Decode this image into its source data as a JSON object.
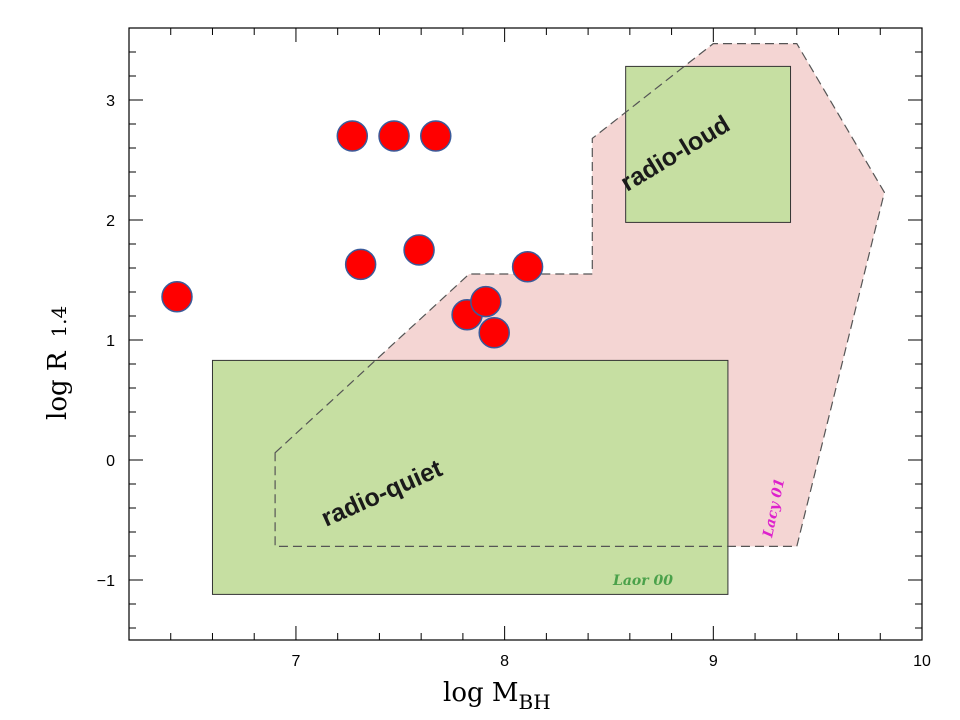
{
  "chart_data": {
    "type": "scatter",
    "title": "",
    "xlabel_main": "log  M",
    "xlabel_sub": "BH",
    "ylabel_main": "log  R",
    "ylabel_sub": "1.4",
    "xlim": [
      6.2,
      10.0
    ],
    "ylim": [
      -1.5,
      3.6
    ],
    "x_ticks": [
      7,
      8,
      9,
      10
    ],
    "y_ticks": [
      -1,
      0,
      1,
      2,
      3
    ],
    "x_tick_labels": [
      "7",
      "8",
      "9",
      "10"
    ],
    "y_tick_labels": [
      "−1",
      "0",
      "1",
      "2",
      "3"
    ],
    "grid": false,
    "points": {
      "color": "#ff0000",
      "edge_color": "#3a5a9a",
      "x": [
        6.43,
        7.27,
        7.47,
        7.67,
        7.31,
        7.59,
        8.11,
        7.82,
        7.91,
        7.95
      ],
      "y": [
        1.36,
        2.7,
        2.7,
        2.7,
        1.63,
        1.75,
        1.61,
        1.21,
        1.32,
        1.06
      ]
    },
    "regions": [
      {
        "name": "radio-quiet",
        "kind": "box",
        "fill": "#c6dfa2",
        "x": [
          6.6,
          9.07
        ],
        "y": [
          -1.12,
          0.83
        ]
      },
      {
        "name": "radio-loud",
        "kind": "box",
        "fill": "#c6dfa2",
        "x": [
          8.58,
          9.37
        ],
        "y": [
          1.98,
          3.28
        ]
      },
      {
        "name": "Lacy 01",
        "kind": "polygon",
        "fill": "#f4d5d3",
        "outline_color": "#555555",
        "x": [
          6.9,
          7.83,
          8.42,
          8.42,
          9.0,
          9.4,
          9.82,
          9.4,
          6.9
        ],
        "y": [
          0.06,
          1.55,
          1.55,
          2.68,
          3.47,
          3.47,
          2.23,
          -0.72,
          -0.72
        ]
      }
    ],
    "annotations": {
      "radio_quiet": "radio-quiet",
      "radio_loud": "radio-loud",
      "laor": "Laor 00",
      "lacy": "Lacy 01"
    },
    "annotation_colors": {
      "laor": "#4aa14a",
      "lacy": "#dd22cc"
    }
  }
}
